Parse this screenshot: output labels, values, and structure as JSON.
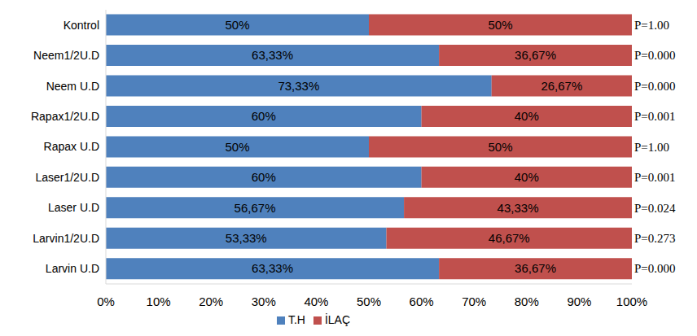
{
  "chart_data": {
    "type": "bar",
    "orientation": "horizontal",
    "stacked": true,
    "data_labels": true,
    "grid": false,
    "legend": "bottom",
    "categories": [
      "Kontrol",
      "Neem1/2U.D",
      "Neem U.D",
      "Rapax1/2U.D",
      "Rapax U.D",
      "Laser1/2U.D",
      "Laser U.D",
      "Larvin1/2U.D",
      "Larvin U.D"
    ],
    "series": [
      {
        "name": "T.H",
        "color": "#4f81bd",
        "values": [
          50,
          63.33,
          73.33,
          60,
          50,
          60,
          56.67,
          53.33,
          63.33
        ],
        "value_labels": [
          "50%",
          "63,33%",
          "73,33%",
          "60%",
          "50%",
          "60%",
          "56,67%",
          "53,33%",
          "63,33%"
        ]
      },
      {
        "name": "İLAÇ",
        "color": "#c0504d",
        "values": [
          50,
          36.67,
          26.67,
          40,
          50,
          40,
          43.33,
          46.67,
          36.67
        ],
        "value_labels": [
          "50%",
          "36,67%",
          "26,67%",
          "40%",
          "50%",
          "40%",
          "43,33%",
          "46,67%",
          "36,67%"
        ]
      }
    ],
    "annotations": [
      "P=1.00",
      "P=0.000",
      "P=0.000",
      "P=0.001",
      "P=1.00",
      "P=0.001",
      "P=0.024",
      "P=0.273",
      "P=0.000"
    ],
    "xlim": [
      0,
      100
    ],
    "xticks": [
      {
        "value": 0,
        "label": "0%"
      },
      {
        "value": 10,
        "label": "10%"
      },
      {
        "value": 20,
        "label": "20%"
      },
      {
        "value": 30,
        "label": "30%"
      },
      {
        "value": 40,
        "label": "40%"
      },
      {
        "value": 50,
        "label": "50%"
      },
      {
        "value": 60,
        "label": "60%"
      },
      {
        "value": 70,
        "label": "70%"
      },
      {
        "value": 80,
        "label": "80%"
      },
      {
        "value": 90,
        "label": "90%"
      },
      {
        "value": 100,
        "label": "100%"
      }
    ]
  }
}
